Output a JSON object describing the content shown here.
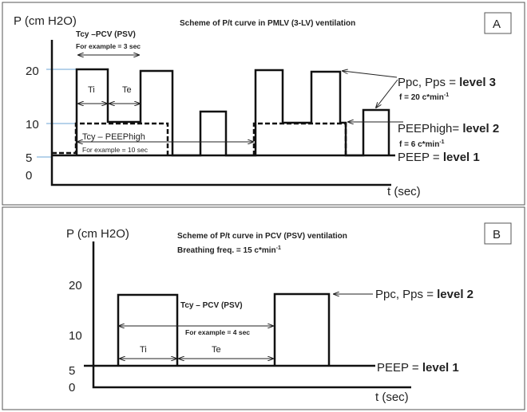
{
  "panel_a": {
    "label": "A",
    "title": "Scheme of P/t curve in PMLV (3-LV) ventilation",
    "y_axis_label": "P (cm H2O)",
    "x_axis_label": "t (sec)",
    "y_ticks": [
      "20",
      "10",
      "5",
      "0"
    ],
    "tcy_pcv": "Tcy –PCV (PSV)",
    "tcy_pcv_example": "For example = 3 sec",
    "ti": "Ti",
    "te": "Te",
    "tcy_peephigh": "Tcy – PEEPhigh",
    "tcy_peephigh_example": "For example = 10 sec",
    "level3_prefix": "Ppc, Pps = ",
    "level3_bold": "level 3",
    "f20_text": "f = 20 c*min",
    "f20_sup": "-1",
    "level2_prefix": "PEEPhigh= ",
    "level2_bold": "level 2",
    "f6_text": "f = 6 c*min",
    "f6_sup": "-1",
    "level1_prefix": "PEEP = ",
    "level1_bold": "level 1"
  },
  "panel_b": {
    "label": "B",
    "title": "Scheme of P/t curve in  PCV (PSV)  ventilation",
    "freq_text": "Breathing freq. = 15 c*min",
    "freq_sup": "-1",
    "y_axis_label": "P (cm H2O)",
    "x_axis_label": "t (sec)",
    "y_ticks": [
      "20",
      "10",
      "5",
      "0"
    ],
    "tcy_pcv": "Tcy – PCV (PSV)",
    "tcy_pcv_example": "For example = 4 sec",
    "ti": "Ti",
    "te": "Te",
    "level2_prefix": "Ppc, Pps = ",
    "level2_bold": "level 2",
    "level1_prefix": "PEEP = ",
    "level1_bold": "level 1"
  }
}
